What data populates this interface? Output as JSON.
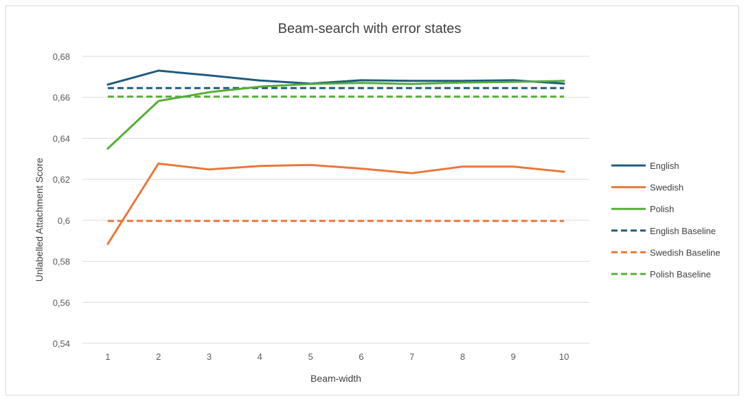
{
  "chart_data": {
    "type": "line",
    "title": "Beam-search with error states",
    "xlabel": "Beam-width",
    "ylabel": "Unlabelled Attachment Score",
    "categories": [
      "1",
      "2",
      "3",
      "4",
      "5",
      "6",
      "7",
      "8",
      "9",
      "10"
    ],
    "ylim": [
      0.54,
      0.68
    ],
    "yticks": [
      "0,54",
      "0,56",
      "0,58",
      "0,6",
      "0,62",
      "0,64",
      "0,66",
      "0,68"
    ],
    "ytick_values": [
      0.54,
      0.56,
      0.58,
      0.6,
      0.62,
      0.64,
      0.66,
      0.68
    ],
    "grid": "horizontal",
    "legend_position": "right",
    "series": [
      {
        "name": "English",
        "color": "#1f5a7f",
        "dash": false,
        "values": [
          0.6662,
          0.673,
          0.6707,
          0.6682,
          0.6667,
          0.6683,
          0.668,
          0.668,
          0.6683,
          0.6667
        ]
      },
      {
        "name": "Swedish",
        "color": "#e9773a",
        "dash": false,
        "values": [
          0.5885,
          0.6277,
          0.6248,
          0.6265,
          0.627,
          0.6252,
          0.623,
          0.6262,
          0.6262,
          0.6237
        ]
      },
      {
        "name": "Polish",
        "color": "#55ad37",
        "dash": false,
        "values": [
          0.635,
          0.6582,
          0.6625,
          0.6652,
          0.6665,
          0.667,
          0.6665,
          0.6672,
          0.6675,
          0.668
        ]
      },
      {
        "name": "English Baseline",
        "color": "#1f5a7f",
        "dash": true,
        "values": [
          0.6645,
          0.6645,
          0.6645,
          0.6645,
          0.6645,
          0.6645,
          0.6645,
          0.6645,
          0.6645,
          0.6645
        ]
      },
      {
        "name": "Swedish Baseline",
        "color": "#e9773a",
        "dash": true,
        "values": [
          0.5997,
          0.5997,
          0.5997,
          0.5997,
          0.5997,
          0.5997,
          0.5997,
          0.5997,
          0.5997,
          0.5997
        ]
      },
      {
        "name": "Polish Baseline",
        "color": "#55ad37",
        "dash": true,
        "values": [
          0.6603,
          0.6603,
          0.6603,
          0.6603,
          0.6603,
          0.6603,
          0.6603,
          0.6603,
          0.6603,
          0.6603
        ]
      }
    ]
  }
}
